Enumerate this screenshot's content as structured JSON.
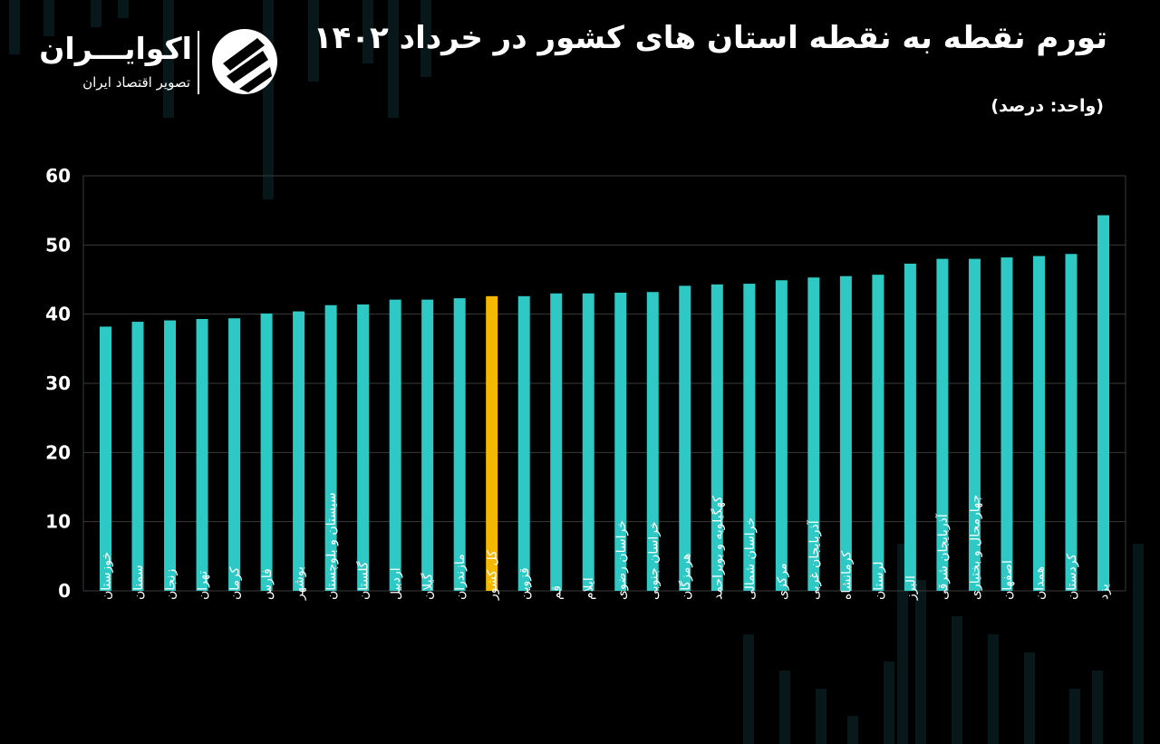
{
  "header": {
    "title": "تورم نقطه به نقطه استان های کشور در خرداد ۱۴۰۲",
    "unit_label": "(واحد: درصد)"
  },
  "brand": {
    "name": "اکوایـــران",
    "tagline": "تصویر اقتصاد ایران",
    "logo_icon": "ekoiran-logo-icon"
  },
  "colors": {
    "background": "#000000",
    "bar": "#2ec9c4",
    "highlight_bar": "#f5b800",
    "grid": "#3a3a3a",
    "text": "#ffffff"
  },
  "chart_data": {
    "type": "bar",
    "title": "تورم نقطه به نقطه استان های کشور در خرداد ۱۴۰۲",
    "ylabel": "",
    "xlabel": "",
    "ylim": [
      0,
      60
    ],
    "yticks": [
      0,
      10,
      20,
      30,
      40,
      50,
      60
    ],
    "ytick_labels": [
      "0",
      "10",
      "20",
      "30",
      "40",
      "50",
      "60"
    ],
    "grid": true,
    "highlight_category": "کل کشور",
    "categories": [
      "خوزستان",
      "سمنان",
      "زنجان",
      "تهران",
      "کرمان",
      "فارس",
      "بوشهر",
      "سیستان و بلوچستان",
      "گلستان",
      "اردبیل",
      "گیلان",
      "مازندران",
      "کل کشور",
      "قزوین",
      "قم",
      "ایلام",
      "خراسان رضوی",
      "خراسان جنوبی",
      "هرمزگان",
      "کهگیلویه و بویراحمد",
      "خراسان شمالی",
      "مرکزی",
      "آذربایجان غربی",
      "کرمانشاه",
      "لرستان",
      "البرز",
      "آذربایجان شرقی",
      "چهارمحال و بختیاری",
      "اصفهان",
      "همدان",
      "کردستان",
      "یزد"
    ],
    "values": [
      38.2,
      38.9,
      39.1,
      39.3,
      39.4,
      40.1,
      40.4,
      41.3,
      41.4,
      42.1,
      42.1,
      42.3,
      42.6,
      42.6,
      43.0,
      43.0,
      43.1,
      43.2,
      44.1,
      44.3,
      44.4,
      44.9,
      45.3,
      45.5,
      45.7,
      47.3,
      48.0,
      48.0,
      48.2,
      48.4,
      48.7,
      54.3
    ]
  }
}
